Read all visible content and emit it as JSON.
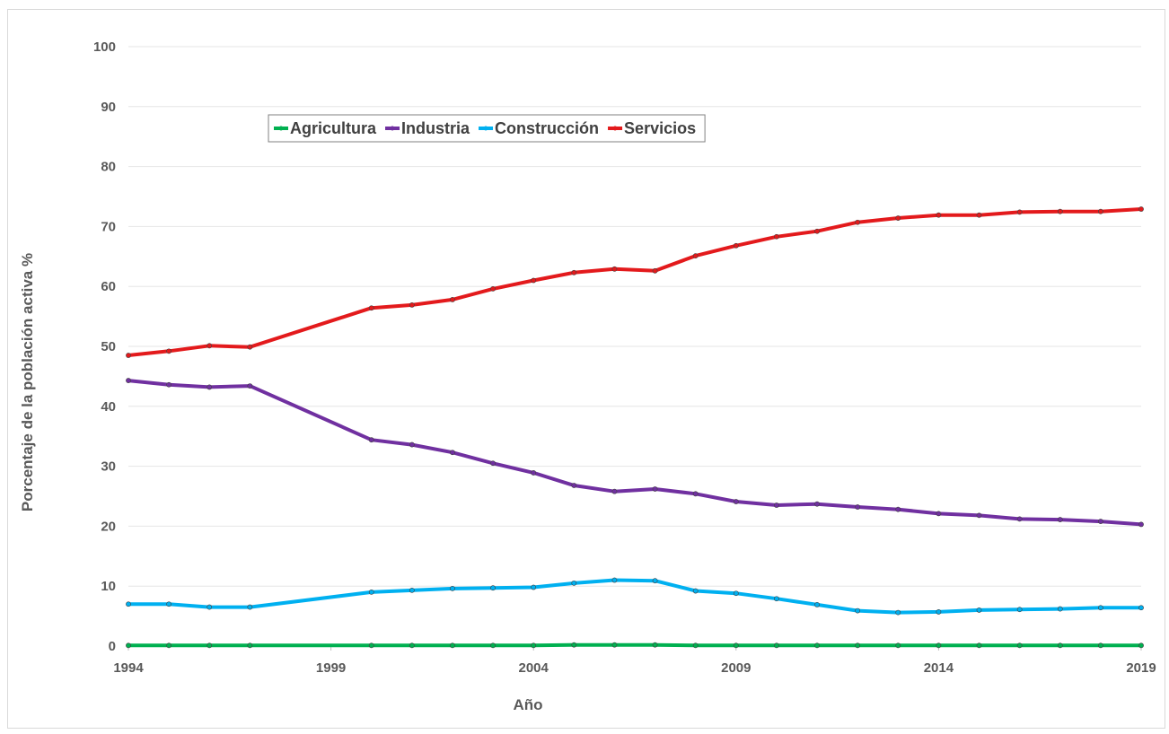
{
  "chart_data": {
    "type": "line",
    "title": "",
    "xlabel": "Año",
    "ylabel": "Porcentaje de la población activa %",
    "xlim": [
      1994,
      2019
    ],
    "ylim": [
      0,
      100
    ],
    "x_ticks": [
      "1994",
      "1999",
      "2004",
      "2009",
      "2014",
      "2019"
    ],
    "y_ticks": [
      "0",
      "10",
      "20",
      "30",
      "40",
      "50",
      "60",
      "70",
      "80",
      "90",
      "100"
    ],
    "grid": "horizontal",
    "legend_position": "top-left",
    "series": [
      {
        "name": "Agricultura",
        "color": "#00b050",
        "points": [
          [
            1994,
            0.1
          ],
          [
            1995,
            0.1
          ],
          [
            1996,
            0.1
          ],
          [
            1997,
            0.1
          ],
          [
            2000,
            0.1
          ],
          [
            2001,
            0.1
          ],
          [
            2002,
            0.1
          ],
          [
            2003,
            0.1
          ],
          [
            2004,
            0.1
          ],
          [
            2005,
            0.2
          ],
          [
            2006,
            0.2
          ],
          [
            2007,
            0.2
          ],
          [
            2008,
            0.1
          ],
          [
            2009,
            0.1
          ],
          [
            2010,
            0.1
          ],
          [
            2011,
            0.1
          ],
          [
            2012,
            0.1
          ],
          [
            2013,
            0.1
          ],
          [
            2014,
            0.1
          ],
          [
            2015,
            0.1
          ],
          [
            2016,
            0.1
          ],
          [
            2017,
            0.1
          ],
          [
            2018,
            0.1
          ],
          [
            2019,
            0.1
          ]
        ]
      },
      {
        "name": "Industria",
        "color": "#7030a0",
        "points": [
          [
            1994,
            44.3
          ],
          [
            1995,
            43.6
          ],
          [
            1996,
            43.2
          ],
          [
            1997,
            43.4
          ],
          [
            2000,
            34.4
          ],
          [
            2001,
            33.6
          ],
          [
            2002,
            32.3
          ],
          [
            2003,
            30.5
          ],
          [
            2004,
            28.9
          ],
          [
            2005,
            26.8
          ],
          [
            2006,
            25.8
          ],
          [
            2007,
            26.2
          ],
          [
            2008,
            25.4
          ],
          [
            2009,
            24.1
          ],
          [
            2010,
            23.5
          ],
          [
            2011,
            23.7
          ],
          [
            2012,
            23.2
          ],
          [
            2013,
            22.8
          ],
          [
            2014,
            22.1
          ],
          [
            2015,
            21.8
          ],
          [
            2016,
            21.2
          ],
          [
            2017,
            21.1
          ],
          [
            2018,
            20.8
          ],
          [
            2019,
            20.3
          ]
        ]
      },
      {
        "name": "Construcción",
        "color": "#00b0f0",
        "points": [
          [
            1994,
            7.0
          ],
          [
            1995,
            7.0
          ],
          [
            1996,
            6.5
          ],
          [
            1997,
            6.5
          ],
          [
            2000,
            9.0
          ],
          [
            2001,
            9.3
          ],
          [
            2002,
            9.6
          ],
          [
            2003,
            9.7
          ],
          [
            2004,
            9.8
          ],
          [
            2005,
            10.5
          ],
          [
            2006,
            11.0
          ],
          [
            2007,
            10.9
          ],
          [
            2008,
            9.2
          ],
          [
            2009,
            8.8
          ],
          [
            2010,
            7.9
          ],
          [
            2011,
            6.9
          ],
          [
            2012,
            5.9
          ],
          [
            2013,
            5.6
          ],
          [
            2014,
            5.7
          ],
          [
            2015,
            6.0
          ],
          [
            2016,
            6.1
          ],
          [
            2017,
            6.2
          ],
          [
            2018,
            6.4
          ],
          [
            2019,
            6.4
          ]
        ]
      },
      {
        "name": "Servicios",
        "color": "#e31a1c",
        "points": [
          [
            1994,
            48.5
          ],
          [
            1995,
            49.2
          ],
          [
            1996,
            50.1
          ],
          [
            1997,
            49.9
          ],
          [
            2000,
            56.4
          ],
          [
            2001,
            56.9
          ],
          [
            2002,
            57.8
          ],
          [
            2003,
            59.6
          ],
          [
            2004,
            61.0
          ],
          [
            2005,
            62.3
          ],
          [
            2006,
            62.9
          ],
          [
            2007,
            62.6
          ],
          [
            2008,
            65.1
          ],
          [
            2009,
            66.8
          ],
          [
            2010,
            68.3
          ],
          [
            2011,
            69.2
          ],
          [
            2012,
            70.7
          ],
          [
            2013,
            71.4
          ],
          [
            2014,
            71.9
          ],
          [
            2015,
            71.9
          ],
          [
            2016,
            72.4
          ],
          [
            2017,
            72.5
          ],
          [
            2018,
            72.5
          ],
          [
            2019,
            72.9
          ]
        ]
      }
    ]
  }
}
